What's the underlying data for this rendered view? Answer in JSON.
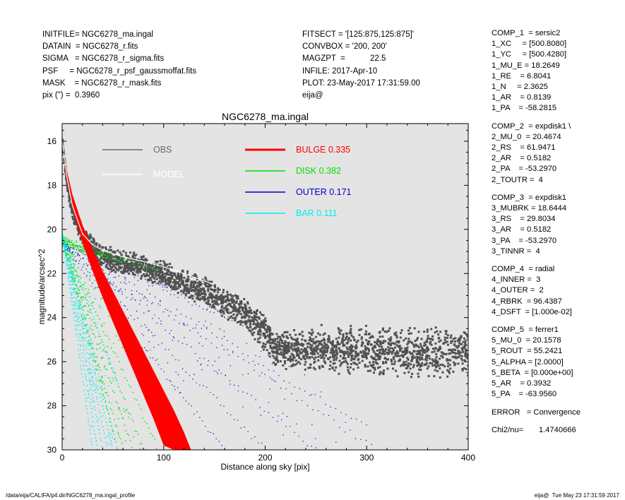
{
  "header_left": [
    "INITFILE= NGC6278_ma.ingal",
    "DATAIN  = NGC6278_r.fits",
    "SIGMA   = NGC6278_r_sigma.fits",
    "PSF     = NGC6278_r_psf_gaussmoffat.fits",
    "MASK    = NGC6278_r_mask.fits",
    "pix (\") =  0.3960"
  ],
  "header_mid": [
    "FITSECT = '[125:875,125:875]'",
    "CONVBOX = '200, 200'",
    "MAGZPT  =           22.5",
    "INFILE: 2017-Apr-10",
    "PLOT: 23-May-2017 17:31:59.00",
    "eija@"
  ],
  "params": [
    [
      "COMP_1  = sersic2",
      "1_XC     = [500.8080]",
      "1_YC     = [500.4280]",
      "1_MU_E = 18.2649",
      "1_RE    = 6.8041",
      "1_N     = 2.3625",
      "1_AR    = 0.8139",
      "1_PA    = -58.2815"
    ],
    [
      "COMP_2  = expdisk1 \\",
      "2_MU_0  = 20.4674",
      "2_RS    = 61.9471",
      "2_AR    = 0.5182",
      "2_PA    = -53.2970",
      "2_TOUTR =  4"
    ],
    [
      "COMP_3  = expdisk1",
      "3_MUBRK = 18.6444",
      "3_RS    = 29.8034",
      "3_AR    = 0.5182",
      "3_PA    = -53.2970",
      "3_TINNR =  4"
    ],
    [
      "COMP_4  = radial",
      "4_INNER =  3",
      "4_OUTER =  2",
      "4_RBRK  = 96.4387",
      "4_DSFT  = [1.000e-02]"
    ],
    [
      "COMP_5  = ferrer1",
      "5_MU_0  = 20.1578",
      "5_ROUT  = 55.2421",
      "5_ALPHA = [2.0000]",
      "5_BETA  = [0.000e+00]",
      "5_AR    = 0.3932",
      "5_PA    = -63.9560"
    ],
    [
      "ERROR   = Convergence"
    ],
    [
      "Chi2/nu=       1.4740666"
    ]
  ],
  "footer_left": "/data/eija/CALIFA/p4.dir/NGC6278_ma.ingal_profile",
  "footer_right": "eija@  Tue May 23 17:31:59 2017",
  "colors": {
    "background": "#e4e4e4",
    "obs": "#505050",
    "model": "#ffffff",
    "bulge": "#ff0000",
    "disk": "#00dd00",
    "outer": "#0000cc",
    "bar": "#00eeee",
    "obs_legend": "#6a6a6a"
  },
  "chart_data": {
    "type": "scatter",
    "title": "NGC6278_ma.ingal",
    "xlabel": "Distance along sky [pix]",
    "ylabel": "magnitude/arcsec^2",
    "xlim": [
      0,
      400
    ],
    "ylim": [
      30,
      15.2
    ],
    "y_inverted": true,
    "x_ticks": [
      "0",
      "100",
      "200",
      "300",
      "400"
    ],
    "x_tick_values": [
      0,
      100,
      200,
      300,
      400
    ],
    "y_ticks": [
      "16",
      "18",
      "20",
      "22",
      "24",
      "26",
      "28",
      "30"
    ],
    "y_tick_values": [
      16,
      18,
      20,
      22,
      24,
      26,
      28,
      30
    ],
    "legend": [
      {
        "label": "OBS",
        "color": "#6a6a6a",
        "value": ""
      },
      {
        "label": "MODEL",
        "color": "#ffffff",
        "value": ""
      },
      {
        "label": "BULGE",
        "color": "#ff0000",
        "value": "0.335"
      },
      {
        "label": "DISK",
        "color": "#00dd00",
        "value": "0.382"
      },
      {
        "label": "OUTER",
        "color": "#0000cc",
        "value": "0.171"
      },
      {
        "label": "BAR",
        "color": "#00eeee",
        "value": "0.111"
      }
    ],
    "series": [
      {
        "name": "OBS",
        "kind": "scatter-cloud",
        "x": [
          0,
          5,
          10,
          20,
          30,
          40,
          50,
          60,
          70,
          80,
          90,
          100,
          120,
          150,
          180,
          200,
          210,
          250,
          300,
          350,
          400
        ],
        "y_upper": [
          15.9,
          17.5,
          18.6,
          19.7,
          20.3,
          20.6,
          20.8,
          20.9,
          21.0,
          21.1,
          21.3,
          21.4,
          21.7,
          22.3,
          23.0,
          23.7,
          24.6,
          24.3,
          24.3,
          24.4,
          24.4
        ],
        "y_lower": [
          16.0,
          18.3,
          19.6,
          20.9,
          21.5,
          21.8,
          22.0,
          22.1,
          22.2,
          22.3,
          22.5,
          22.7,
          23.2,
          23.8,
          24.6,
          25.6,
          26.3,
          26.5,
          26.7,
          26.8,
          26.8
        ]
      },
      {
        "name": "MODEL",
        "kind": "line",
        "x": [
          0,
          5,
          10,
          20,
          30,
          40,
          50,
          60,
          80,
          100,
          120,
          150
        ],
        "y": [
          15.95,
          17.7,
          18.9,
          20.2,
          20.7,
          20.95,
          21.1,
          21.25,
          21.45,
          21.7,
          22.0,
          22.5
        ]
      },
      {
        "name": "BULGE",
        "kind": "band",
        "x": [
          0,
          5,
          10,
          20,
          30,
          40,
          50,
          60,
          70,
          80,
          90,
          100,
          110,
          120,
          127
        ],
        "y_upper": [
          15.9,
          17.4,
          18.4,
          19.8,
          20.9,
          21.9,
          22.8,
          23.7,
          24.6,
          25.5,
          26.4,
          27.3,
          28.2,
          29.2,
          30.0
        ],
        "y_lower": [
          16.0,
          17.9,
          19.0,
          20.6,
          21.9,
          23.1,
          24.2,
          25.3,
          26.4,
          27.5,
          28.6,
          29.8,
          30.0,
          30.0,
          30.0
        ]
      },
      {
        "name": "DISK",
        "kind": "fan",
        "x_start": 0,
        "y_start_range": [
          20.3,
          20.6
        ],
        "rays": [
          [
            55,
            30
          ],
          [
            60,
            30
          ],
          [
            70,
            30
          ],
          [
            80,
            30
          ],
          [
            95,
            30
          ],
          [
            30,
            21.2
          ],
          [
            60,
            21.5
          ],
          [
            95,
            21.9
          ]
        ]
      },
      {
        "name": "OUTER",
        "kind": "fan",
        "x_start": 0,
        "y_start_range": [
          20.5,
          20.8
        ],
        "rays": [
          [
            160,
            30
          ],
          [
            200,
            30
          ],
          [
            250,
            30
          ],
          [
            310,
            30
          ],
          [
            130,
            23.0
          ],
          [
            210,
            25.0
          ],
          [
            300,
            29.0
          ]
        ]
      },
      {
        "name": "BAR",
        "kind": "fan",
        "x_start": 0,
        "y_start_range": [
          20.1,
          20.2
        ],
        "rays": [
          [
            30,
            30
          ],
          [
            35,
            30
          ],
          [
            40,
            30
          ],
          [
            45,
            30
          ],
          [
            50,
            30
          ],
          [
            55,
            30
          ],
          [
            55,
            27.0
          ]
        ]
      }
    ]
  }
}
